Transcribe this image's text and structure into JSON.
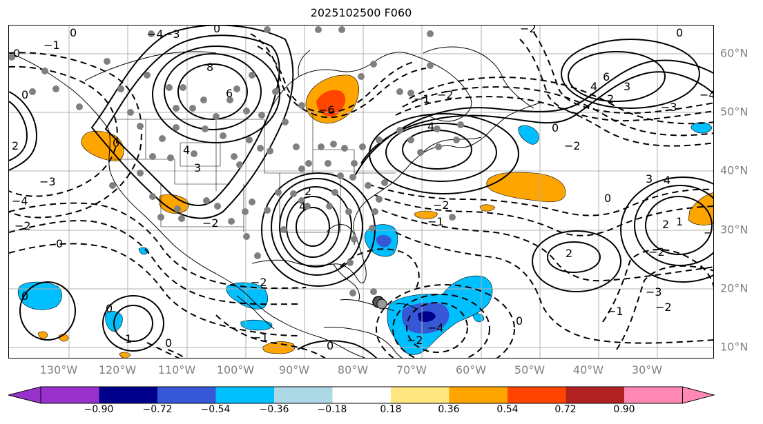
{
  "title": "2025102500 F060",
  "lon_labels": [
    "130°W",
    "120°W",
    "110°W",
    "100°W",
    "90°W",
    "80°W",
    "70°W",
    "60°W",
    "50°W",
    "40°W",
    "30°W"
  ],
  "lat_labels": [
    "60°N",
    "50°N",
    "40°N",
    "30°N",
    "20°N",
    "10°N"
  ],
  "colorbar": {
    "ticks": [
      "−0.90",
      "−0.72",
      "−0.54",
      "−0.36",
      "−0.18",
      "0.18",
      "0.36",
      "0.54",
      "0.72",
      "0.90"
    ],
    "colors": [
      "#9932cc",
      "#00008b",
      "#3658d6",
      "#00bfff",
      "#add8e6",
      "#ffffff",
      "#ffe680",
      "#ffa500",
      "#ff4500",
      "#b22222",
      "#ff88b4"
    ]
  },
  "colors": {
    "line": "#000000",
    "gridline": "#b0b0b0",
    "station": "#808080",
    "axis_label": "#808080"
  },
  "contour_labels": [
    "0",
    "1",
    "2",
    "3",
    "4",
    "6",
    "8",
    "−1",
    "−2",
    "−3",
    "−4",
    "−6"
  ]
}
